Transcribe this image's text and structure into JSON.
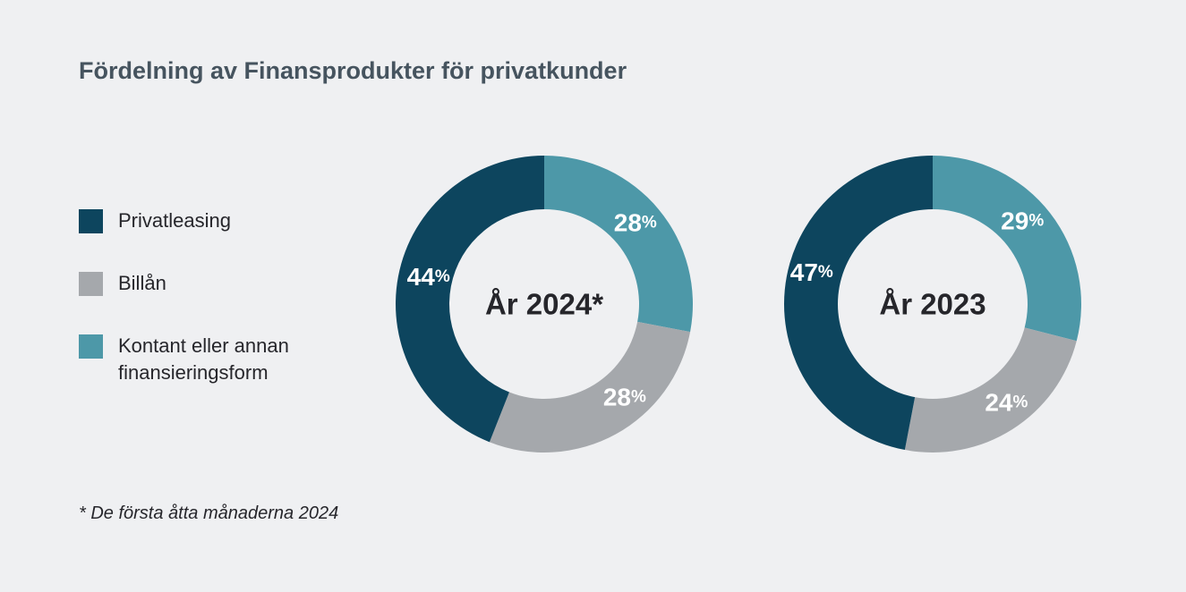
{
  "title": "Fördelning av Finansprodukter för privatkunder",
  "footnote": "* De första åtta månaderna 2024",
  "colors": {
    "background": "#eff0f2",
    "title_text": "#46545f",
    "body_text": "#26262b",
    "value_label_text": "#ffffff",
    "privatleasing": "#0d455e",
    "billan": "#a5a8ac",
    "kontant": "#4d98a8"
  },
  "legend": {
    "items": [
      {
        "label": "Privatleasing",
        "color": "#0d455e"
      },
      {
        "label": "Billån",
        "color": "#a5a8ac"
      },
      {
        "label": "Kontant eller annan finansieringsform",
        "color": "#4d98a8"
      }
    ]
  },
  "chart_data": [
    {
      "type": "pie",
      "variant": "donut",
      "center_label": "År 2024*",
      "unit": "%",
      "direction": "clockwise",
      "start_angle_deg": 0,
      "slices": [
        {
          "label": "Kontant eller annan finansieringsform",
          "value": 28,
          "color": "#4d98a8",
          "label_angle_deg": 48,
          "label_radius": 137
        },
        {
          "label": "Billån",
          "value": 28,
          "color": "#a5a8ac",
          "label_angle_deg": 139,
          "label_radius": 137
        },
        {
          "label": "Privatleasing",
          "value": 44,
          "color": "#0d455e",
          "label_angle_deg": 283.5,
          "label_radius": 133
        }
      ]
    },
    {
      "type": "pie",
      "variant": "donut",
      "center_label": "År 2023",
      "unit": "%",
      "direction": "clockwise",
      "start_angle_deg": 0,
      "slices": [
        {
          "label": "Kontant eller annan finansieringsform",
          "value": 29,
          "color": "#4d98a8",
          "label_angle_deg": 47,
          "label_radius": 137
        },
        {
          "label": "Billån",
          "value": 24,
          "color": "#a5a8ac",
          "label_angle_deg": 143,
          "label_radius": 137
        },
        {
          "label": "Privatleasing",
          "value": 47,
          "color": "#0d455e",
          "label_angle_deg": 285,
          "label_radius": 140
        }
      ]
    }
  ]
}
